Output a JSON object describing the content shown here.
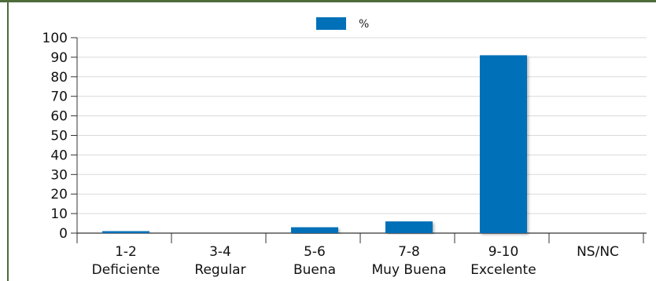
{
  "chart_data": {
    "type": "bar",
    "categories": [
      [
        "1-2",
        "Deficiente"
      ],
      [
        "3-4",
        "Regular"
      ],
      [
        "5-6",
        "Buena"
      ],
      [
        "7-8",
        "Muy Buena"
      ],
      [
        "9-10",
        "Excelente"
      ],
      [
        "NS/NC"
      ]
    ],
    "series": [
      {
        "name": "%",
        "values": [
          1,
          0,
          3,
          6,
          91,
          0
        ]
      }
    ],
    "ylim": [
      0,
      100
    ],
    "yticks": [
      "0",
      "10",
      "20",
      "30",
      "40",
      "50",
      "60",
      "70",
      "80",
      "90",
      "100"
    ],
    "title": "",
    "xlabel": "",
    "ylabel": "",
    "grid": true,
    "legend_position": "top-center",
    "colors": {
      "bar": "#0070b8",
      "grid": "#d9d9d9",
      "axis": "#333333",
      "frame": "#4e6b3a"
    }
  }
}
